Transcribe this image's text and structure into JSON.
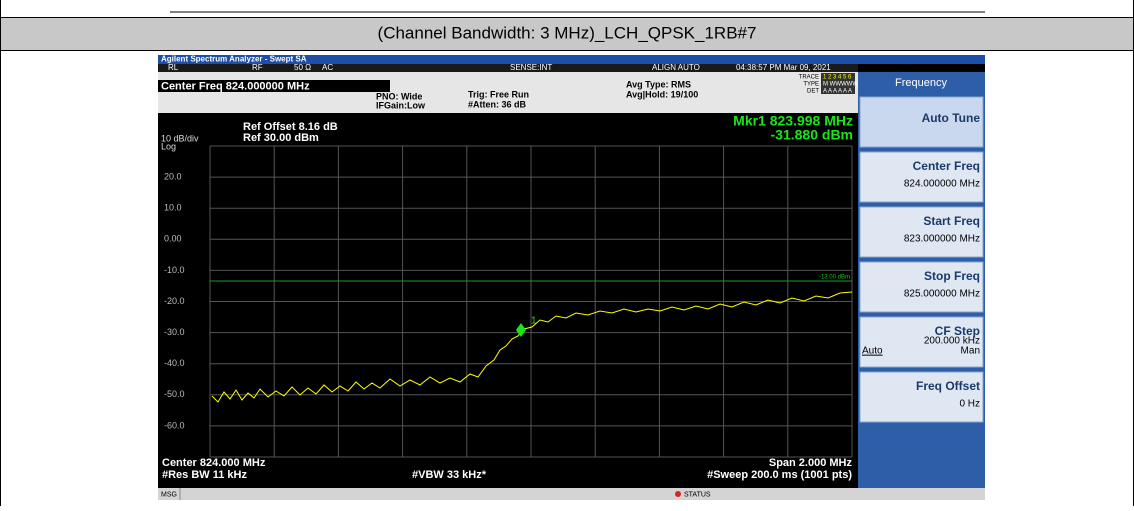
{
  "header": {
    "title": "(Channel Bandwidth: 3 MHz)_LCH_QPSK_1RB#7"
  },
  "analyzer": {
    "window_title": "Agilent Spectrum Analyzer - Swept SA",
    "status_bar": [
      "RL",
      "RF",
      "50 Ω",
      "AC",
      "SENSE:INT",
      "ALIGN AUTO",
      "04:38:57 PM Mar 09, 2021"
    ],
    "center_freq": "Center Freq 824.000000 MHz",
    "settings": [
      "PNO: Wide",
      "IFGain:Low",
      "Trig: Free Run",
      "#Atten: 36 dB",
      "Avg Type: RMS",
      "Avg|Hold: 19/100"
    ],
    "trace_info": {
      "trace": "TRACE",
      "type": "TYPE",
      "det": "DET",
      "trace_nums": "1 2 3 4 5 6",
      "type_val": "M WWWWW",
      "det_val": "A A A A A A"
    },
    "scale": "10 dB/div",
    "log": "Log",
    "ref_offset": "Ref Offset 8.16 dB",
    "ref_level": "Ref 30.00 dBm",
    "marker_freq": "Mkr1 823.998 MHz",
    "marker_level": "-31.880 dBm",
    "marker_id": "1",
    "y_labels": [
      "20.0",
      "10.0",
      "0.00",
      "-10.0",
      "-20.0",
      "-30.0",
      "-40.0",
      "-50.0",
      "-60.0"
    ],
    "limit_label": "-13.00 dBm",
    "footer": [
      "Center 824.000 MHz",
      "#Res BW 11 kHz",
      "#VBW 33 kHz*",
      "Span 2.000 MHz",
      "#Sweep 200.0 ms (1001 pts)"
    ],
    "msg": "MSG",
    "status": "STATUS",
    "menu": {
      "title": "Frequency",
      "keys": [
        {
          "label": "Auto Tune"
        },
        {
          "label": "Center Freq",
          "value": "824.000000 MHz"
        },
        {
          "label": "Start Freq",
          "value": "823.000000 MHz"
        },
        {
          "label": "Stop Freq",
          "value": "825.000000 MHz"
        },
        {
          "label": "CF Step",
          "value": "200.000 kHz",
          "options": [
            "Auto",
            "Man"
          ]
        },
        {
          "label": "Freq Offset",
          "value": "0 Hz"
        }
      ]
    }
  }
}
